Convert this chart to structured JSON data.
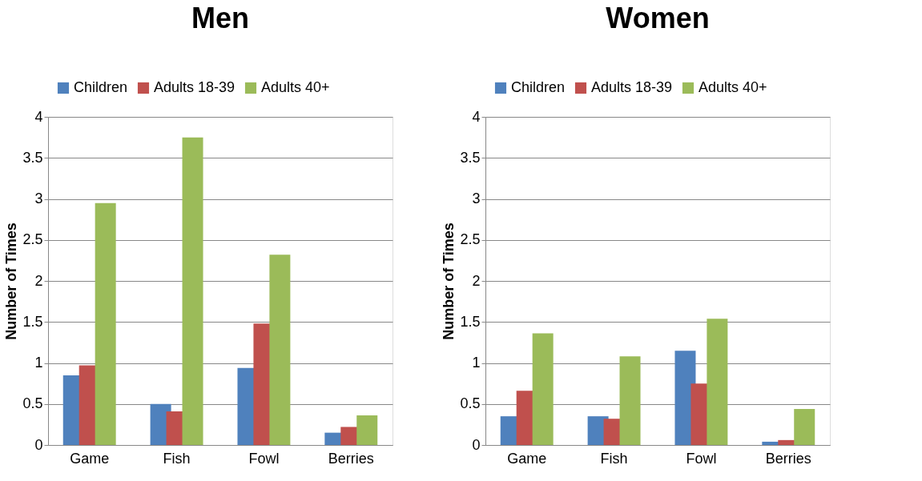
{
  "chart_data": [
    {
      "type": "bar",
      "title": "Men",
      "ylabel": "Number of Times",
      "categories": [
        "Game",
        "Fish",
        "Fowl",
        "Berries"
      ],
      "ylim": [
        0,
        4
      ],
      "yticks": [
        0,
        0.5,
        1,
        1.5,
        2,
        2.5,
        3,
        3.5,
        4
      ],
      "grid": "y",
      "legend": "top",
      "series": [
        {
          "name": "Children",
          "color": "#4f81bd",
          "values": [
            0.85,
            0.5,
            0.94,
            0.15
          ]
        },
        {
          "name": "Adults 18-39",
          "color": "#c0504d",
          "values": [
            0.97,
            0.41,
            1.48,
            0.22
          ]
        },
        {
          "name": "Adults 40+",
          "color": "#9bbb59",
          "values": [
            2.95,
            3.75,
            2.32,
            0.36
          ]
        }
      ]
    },
    {
      "type": "bar",
      "title": "Women",
      "ylabel": "Number of Times",
      "categories": [
        "Game",
        "Fish",
        "Fowl",
        "Berries"
      ],
      "ylim": [
        0,
        4
      ],
      "yticks": [
        0,
        0.5,
        1,
        1.5,
        2,
        2.5,
        3,
        3.5,
        4
      ],
      "grid": "y",
      "legend": "top",
      "series": [
        {
          "name": "Children",
          "color": "#4f81bd",
          "values": [
            0.35,
            0.35,
            1.15,
            0.04
          ]
        },
        {
          "name": "Adults 18-39",
          "color": "#c0504d",
          "values": [
            0.66,
            0.32,
            0.75,
            0.06
          ]
        },
        {
          "name": "Adults 40+",
          "color": "#9bbb59",
          "values": [
            1.36,
            1.08,
            1.54,
            0.44
          ]
        }
      ]
    }
  ]
}
